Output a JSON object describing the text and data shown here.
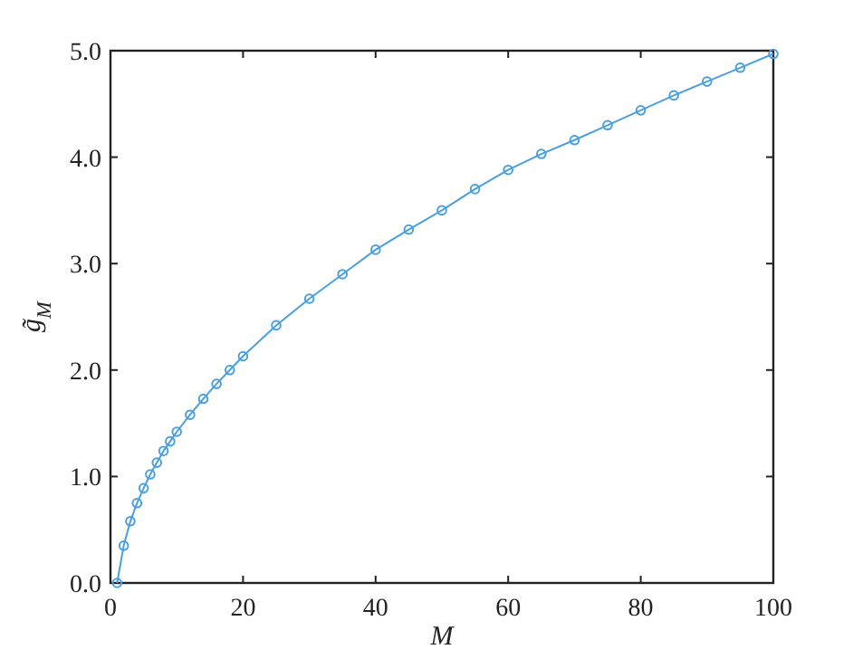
{
  "chart_data": {
    "type": "line",
    "xlabel": "M",
    "ylabel": "g̃$_{M}$",
    "marker": "circle",
    "line_style": "solid",
    "grid": false,
    "x": [
      1,
      2,
      3,
      4,
      5,
      6,
      7,
      8,
      9,
      10,
      12,
      14,
      16,
      18,
      20,
      25,
      30,
      35,
      40,
      45,
      50,
      55,
      60,
      65,
      70,
      75,
      80,
      85,
      90,
      95,
      100
    ],
    "series": [
      {
        "color": "#4a9fe0",
        "values": [
          0,
          0.35,
          0.58,
          0.75,
          0.89,
          1.02,
          1.13,
          1.24,
          1.33,
          1.42,
          1.58,
          1.73,
          1.87,
          2.0,
          2.13,
          2.42,
          2.67,
          2.9,
          3.13,
          3.32,
          3.5,
          3.7,
          3.88,
          4.03,
          4.16,
          4.3,
          4.44,
          4.58,
          4.71,
          4.84,
          4.97
        ]
      }
    ],
    "xlim": [
      0,
      100
    ],
    "xticks": [
      0,
      20,
      40,
      60,
      80,
      100
    ],
    "ylim": [
      0,
      5
    ],
    "yticks": [
      {
        "value": 0,
        "label": "0.0"
      },
      {
        "value": 1,
        "label": "1.0"
      },
      {
        "value": 2,
        "label": "2.0"
      },
      {
        "value": 3,
        "label": "3.0"
      },
      {
        "value": 4,
        "label": "4.0"
      },
      {
        "value": 5,
        "label": "5.0"
      }
    ]
  }
}
